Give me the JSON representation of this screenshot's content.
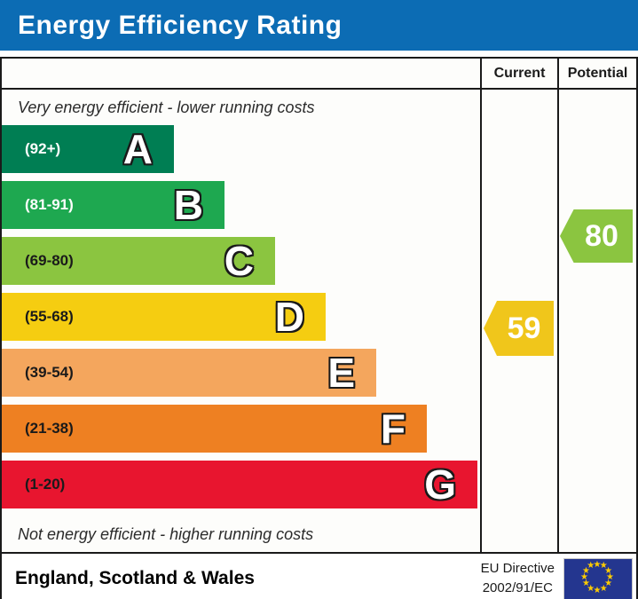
{
  "title": "Energy Efficiency Rating",
  "header": {
    "current": "Current",
    "potential": "Potential"
  },
  "notes": {
    "top": "Very energy efficient - lower running costs",
    "bottom": "Not energy efficient - higher running costs"
  },
  "chart_data": {
    "type": "bar",
    "orientation": "horizontal",
    "title": "Energy Efficiency Rating",
    "categories": [
      "A",
      "B",
      "C",
      "D",
      "E",
      "F",
      "G"
    ],
    "bands": [
      {
        "letter": "A",
        "range_label": "(92+)",
        "min": 92,
        "max": 100,
        "color": "#007e53",
        "label_color": "#ffffff"
      },
      {
        "letter": "B",
        "range_label": "(81-91)",
        "min": 81,
        "max": 91,
        "color": "#1ea850",
        "label_color": "#ffffff"
      },
      {
        "letter": "C",
        "range_label": "(69-80)",
        "min": 69,
        "max": 80,
        "color": "#8bc540",
        "label_color": "#1a1a1a"
      },
      {
        "letter": "D",
        "range_label": "(55-68)",
        "min": 55,
        "max": 68,
        "color": "#f5cd11",
        "label_color": "#1a1a1a"
      },
      {
        "letter": "E",
        "range_label": "(39-54)",
        "min": 39,
        "max": 54,
        "color": "#f4a65d",
        "label_color": "#1a1a1a"
      },
      {
        "letter": "F",
        "range_label": "(21-38)",
        "min": 21,
        "max": 38,
        "color": "#ee8022",
        "label_color": "#1a1a1a"
      },
      {
        "letter": "G",
        "range_label": "(1-20)",
        "min": 1,
        "max": 20,
        "color": "#e8152f",
        "label_color": "#1a1a1a"
      }
    ],
    "ratings": {
      "current": {
        "value": 59,
        "band": "D",
        "color": "#f0c61b"
      },
      "potential": {
        "value": 80,
        "band": "C",
        "color": "#8bc540"
      }
    },
    "grid": false,
    "legend_position": "none"
  },
  "footer": {
    "region": "England, Scotland & Wales",
    "directive_line1": "EU Directive",
    "directive_line2": "2002/91/EC"
  },
  "colors": {
    "title_bar_blue": "#0c6cb4",
    "border": "#1a1a1a",
    "eu_flag_blue": "#24368f",
    "eu_star_yellow": "#ffcc00"
  }
}
